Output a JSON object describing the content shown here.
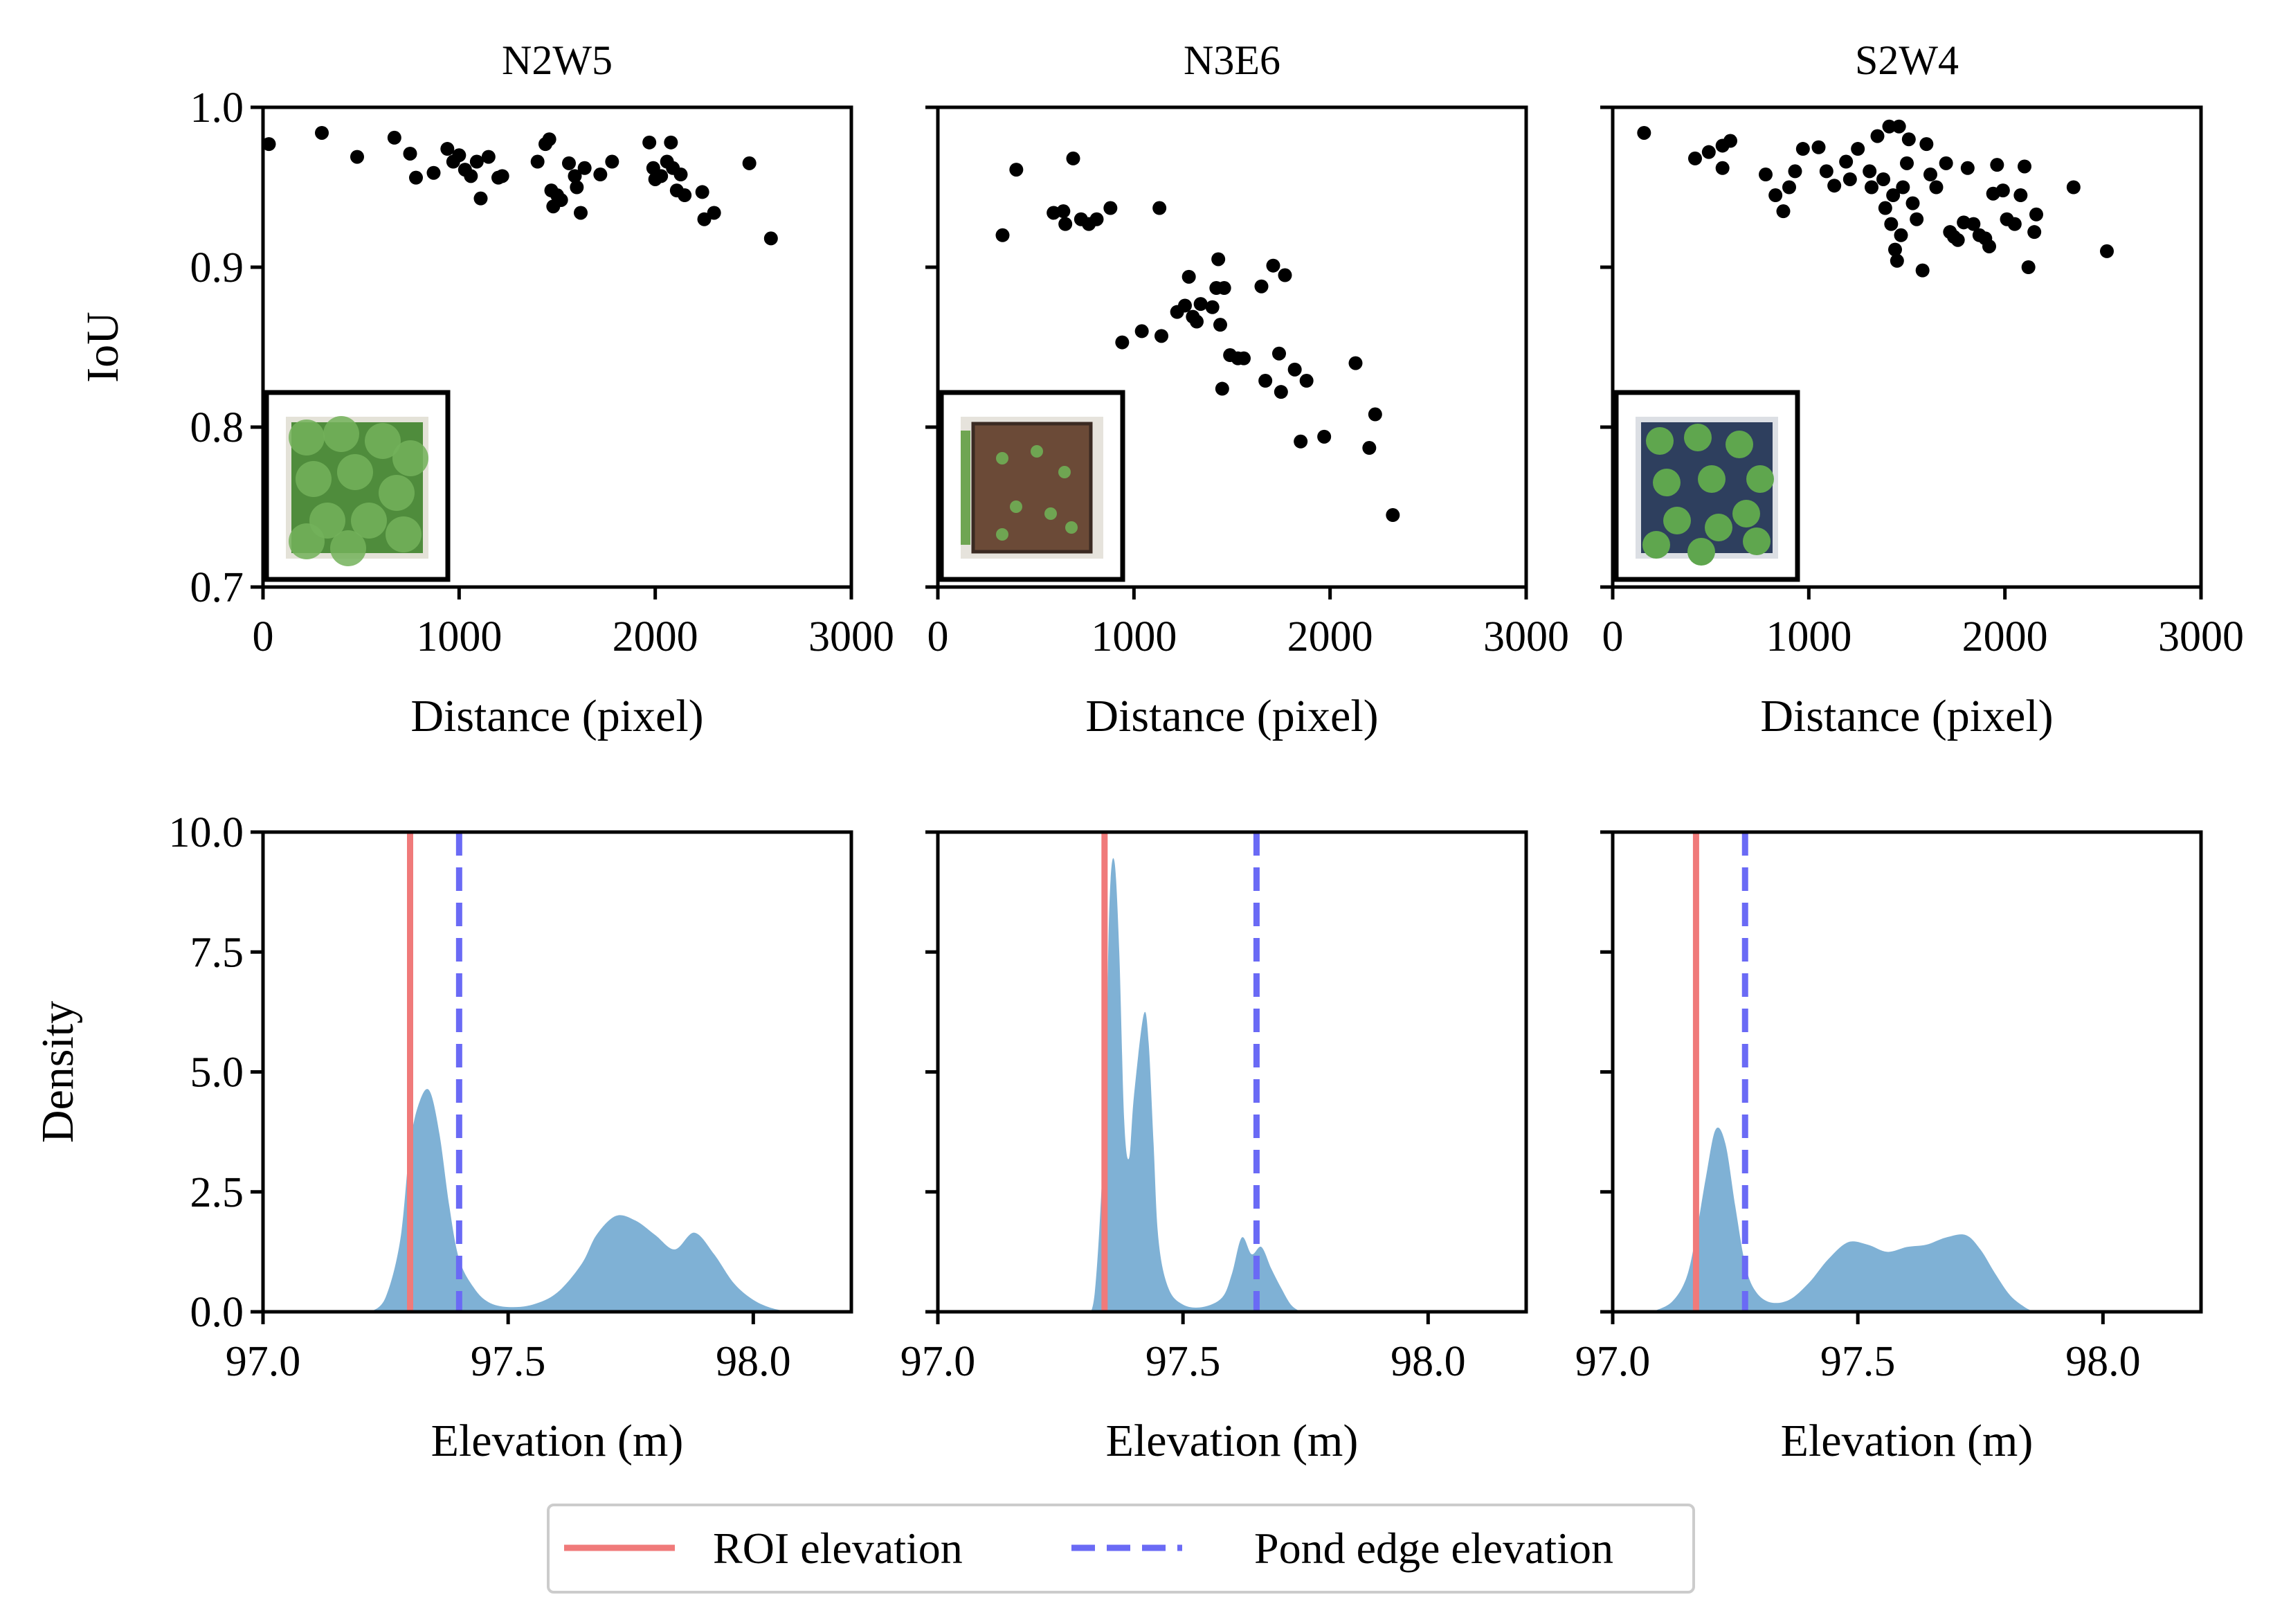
{
  "figure": {
    "legend": {
      "entries": [
        {
          "label": "ROI elevation",
          "style": "solid",
          "color": "#f07a7a"
        },
        {
          "label": "Pond edge elevation",
          "style": "dashed",
          "color": "#6a6af5"
        }
      ]
    }
  },
  "chart_data": [
    {
      "type": "scatter",
      "title": "N2W5",
      "xlabel": "Distance (pixel)",
      "ylabel": "IoU",
      "xlim": [
        0,
        3000
      ],
      "ylim": [
        0.7,
        1.0
      ],
      "xticks": [
        "0",
        "1000",
        "2000",
        "3000"
      ],
      "yticks": [
        "0.7",
        "0.8",
        "0.9",
        "1.0"
      ],
      "inset": "photo-green-dense",
      "points": [
        [
          30,
          0.977
        ],
        [
          300,
          0.984
        ],
        [
          480,
          0.969
        ],
        [
          670,
          0.981
        ],
        [
          750,
          0.971
        ],
        [
          780,
          0.956
        ],
        [
          870,
          0.959
        ],
        [
          940,
          0.974
        ],
        [
          970,
          0.966
        ],
        [
          1000,
          0.97
        ],
        [
          1030,
          0.961
        ],
        [
          1060,
          0.957
        ],
        [
          1090,
          0.966
        ],
        [
          1110,
          0.943
        ],
        [
          1150,
          0.969
        ],
        [
          1200,
          0.956
        ],
        [
          1220,
          0.957
        ],
        [
          1400,
          0.966
        ],
        [
          1440,
          0.977
        ],
        [
          1460,
          0.98
        ],
        [
          1470,
          0.948
        ],
        [
          1480,
          0.938
        ],
        [
          1500,
          0.945
        ],
        [
          1520,
          0.942
        ],
        [
          1560,
          0.965
        ],
        [
          1590,
          0.957
        ],
        [
          1600,
          0.95
        ],
        [
          1620,
          0.934
        ],
        [
          1640,
          0.962
        ],
        [
          1720,
          0.958
        ],
        [
          1780,
          0.966
        ],
        [
          1970,
          0.978
        ],
        [
          1990,
          0.962
        ],
        [
          2000,
          0.955
        ],
        [
          2030,
          0.957
        ],
        [
          2060,
          0.966
        ],
        [
          2080,
          0.978
        ],
        [
          2090,
          0.962
        ],
        [
          2110,
          0.948
        ],
        [
          2130,
          0.958
        ],
        [
          2150,
          0.945
        ],
        [
          2240,
          0.947
        ],
        [
          2250,
          0.93
        ],
        [
          2300,
          0.934
        ],
        [
          2480,
          0.965
        ],
        [
          2590,
          0.918
        ]
      ]
    },
    {
      "type": "scatter",
      "title": "N3E6",
      "xlabel": "Distance (pixel)",
      "ylabel": "",
      "xlim": [
        0,
        3000
      ],
      "ylim": [
        0.7,
        1.0
      ],
      "xticks": [
        "0",
        "1000",
        "2000",
        "3000"
      ],
      "inset": "photo-brown-soil",
      "points": [
        [
          330,
          0.92
        ],
        [
          400,
          0.961
        ],
        [
          590,
          0.934
        ],
        [
          640,
          0.935
        ],
        [
          650,
          0.927
        ],
        [
          690,
          0.968
        ],
        [
          730,
          0.93
        ],
        [
          770,
          0.927
        ],
        [
          810,
          0.93
        ],
        [
          880,
          0.937
        ],
        [
          940,
          0.853
        ],
        [
          1040,
          0.86
        ],
        [
          1130,
          0.937
        ],
        [
          1140,
          0.857
        ],
        [
          1220,
          0.872
        ],
        [
          1260,
          0.876
        ],
        [
          1280,
          0.894
        ],
        [
          1300,
          0.869
        ],
        [
          1320,
          0.866
        ],
        [
          1340,
          0.877
        ],
        [
          1400,
          0.875
        ],
        [
          1420,
          0.887
        ],
        [
          1430,
          0.905
        ],
        [
          1440,
          0.864
        ],
        [
          1450,
          0.824
        ],
        [
          1460,
          0.887
        ],
        [
          1490,
          0.845
        ],
        [
          1530,
          0.843
        ],
        [
          1560,
          0.843
        ],
        [
          1650,
          0.888
        ],
        [
          1670,
          0.829
        ],
        [
          1710,
          0.901
        ],
        [
          1740,
          0.846
        ],
        [
          1750,
          0.822
        ],
        [
          1770,
          0.895
        ],
        [
          1820,
          0.836
        ],
        [
          1850,
          0.791
        ],
        [
          1880,
          0.829
        ],
        [
          1970,
          0.794
        ],
        [
          2130,
          0.84
        ],
        [
          2200,
          0.787
        ],
        [
          2230,
          0.808
        ],
        [
          2320,
          0.745
        ]
      ]
    },
    {
      "type": "scatter",
      "title": "S2W4",
      "xlabel": "Distance (pixel)",
      "ylabel": "",
      "xlim": [
        0,
        3000
      ],
      "ylim": [
        0.7,
        1.0
      ],
      "xticks": [
        "0",
        "1000",
        "2000",
        "3000"
      ],
      "inset": "photo-green-sparse",
      "points": [
        [
          160,
          0.984
        ],
        [
          420,
          0.968
        ],
        [
          490,
          0.972
        ],
        [
          560,
          0.976
        ],
        [
          560,
          0.962
        ],
        [
          600,
          0.979
        ],
        [
          780,
          0.958
        ],
        [
          830,
          0.945
        ],
        [
          870,
          0.935
        ],
        [
          900,
          0.95
        ],
        [
          930,
          0.96
        ],
        [
          970,
          0.974
        ],
        [
          1050,
          0.975
        ],
        [
          1090,
          0.96
        ],
        [
          1130,
          0.951
        ],
        [
          1190,
          0.966
        ],
        [
          1210,
          0.955
        ],
        [
          1250,
          0.974
        ],
        [
          1310,
          0.96
        ],
        [
          1320,
          0.95
        ],
        [
          1350,
          0.982
        ],
        [
          1380,
          0.955
        ],
        [
          1390,
          0.937
        ],
        [
          1410,
          0.988
        ],
        [
          1420,
          0.927
        ],
        [
          1430,
          0.945
        ],
        [
          1440,
          0.911
        ],
        [
          1450,
          0.904
        ],
        [
          1460,
          0.988
        ],
        [
          1470,
          0.92
        ],
        [
          1480,
          0.95
        ],
        [
          1500,
          0.965
        ],
        [
          1510,
          0.98
        ],
        [
          1530,
          0.94
        ],
        [
          1550,
          0.93
        ],
        [
          1580,
          0.898
        ],
        [
          1600,
          0.977
        ],
        [
          1620,
          0.958
        ],
        [
          1650,
          0.95
        ],
        [
          1700,
          0.965
        ],
        [
          1720,
          0.922
        ],
        [
          1740,
          0.919
        ],
        [
          1760,
          0.917
        ],
        [
          1790,
          0.928
        ],
        [
          1810,
          0.962
        ],
        [
          1840,
          0.927
        ],
        [
          1870,
          0.92
        ],
        [
          1900,
          0.918
        ],
        [
          1920,
          0.913
        ],
        [
          1940,
          0.946
        ],
        [
          1960,
          0.964
        ],
        [
          1990,
          0.948
        ],
        [
          2010,
          0.93
        ],
        [
          2050,
          0.927
        ],
        [
          2080,
          0.945
        ],
        [
          2100,
          0.963
        ],
        [
          2120,
          0.9
        ],
        [
          2150,
          0.922
        ],
        [
          2160,
          0.933
        ],
        [
          2350,
          0.95
        ],
        [
          2520,
          0.91
        ]
      ]
    },
    {
      "type": "area",
      "subtype": "kde",
      "xlabel": "Elevation (m)",
      "ylabel": "Density",
      "xlim": [
        97.0,
        98.2
      ],
      "ylim": [
        0,
        10
      ],
      "xticks": [
        "97.0",
        "97.5",
        "98.0"
      ],
      "yticks": [
        "0.0",
        "2.5",
        "5.0",
        "7.5",
        "10.0"
      ],
      "roi_elevation": 97.3,
      "pond_edge_elevation": 97.4,
      "x": [
        97.22,
        97.25,
        97.28,
        97.3,
        97.32,
        97.34,
        97.36,
        97.38,
        97.4,
        97.43,
        97.46,
        97.5,
        97.55,
        97.6,
        97.65,
        97.68,
        97.72,
        97.76,
        97.8,
        97.84,
        97.88,
        97.92,
        97.96,
        98.0,
        98.04,
        98.08
      ],
      "density": [
        0.0,
        0.3,
        1.5,
        3.5,
        4.4,
        4.6,
        3.7,
        2.2,
        1.1,
        0.5,
        0.2,
        0.1,
        0.15,
        0.4,
        1.0,
        1.6,
        2.0,
        1.9,
        1.6,
        1.3,
        1.65,
        1.2,
        0.6,
        0.25,
        0.07,
        0.0
      ]
    },
    {
      "type": "area",
      "subtype": "kde",
      "xlabel": "Elevation (m)",
      "ylabel": "",
      "xlim": [
        97.0,
        98.2
      ],
      "ylim": [
        0,
        10
      ],
      "xticks": [
        "97.0",
        "97.5",
        "98.0"
      ],
      "roi_elevation": 97.34,
      "pond_edge_elevation": 97.65,
      "x": [
        97.3,
        97.32,
        97.34,
        97.35,
        97.36,
        97.37,
        97.38,
        97.39,
        97.4,
        97.42,
        97.43,
        97.44,
        97.45,
        97.47,
        97.5,
        97.54,
        97.58,
        97.6,
        97.62,
        97.64,
        97.66,
        97.68,
        97.7,
        97.72,
        97.74
      ],
      "density": [
        0.0,
        0.4,
        4.0,
        8.5,
        9.4,
        7.5,
        4.0,
        3.2,
        4.5,
        6.2,
        5.6,
        3.5,
        1.5,
        0.5,
        0.15,
        0.1,
        0.3,
        0.8,
        1.55,
        1.2,
        1.35,
        0.9,
        0.5,
        0.15,
        0.0
      ]
    },
    {
      "type": "area",
      "subtype": "kde",
      "xlabel": "Elevation (m)",
      "ylabel": "",
      "xlim": [
        97.0,
        98.2
      ],
      "ylim": [
        0,
        10
      ],
      "xticks": [
        "97.0",
        "97.5",
        "98.0"
      ],
      "roi_elevation": 97.17,
      "pond_edge_elevation": 97.27,
      "x": [
        97.08,
        97.12,
        97.15,
        97.17,
        97.19,
        97.21,
        97.23,
        97.25,
        97.27,
        97.29,
        97.32,
        97.36,
        97.4,
        97.44,
        97.48,
        97.52,
        97.56,
        97.6,
        97.64,
        97.68,
        97.72,
        97.75,
        97.78,
        97.81,
        97.84,
        97.86
      ],
      "density": [
        0.0,
        0.2,
        0.7,
        1.6,
        2.8,
        3.8,
        3.5,
        2.2,
        1.0,
        0.45,
        0.2,
        0.25,
        0.6,
        1.1,
        1.45,
        1.4,
        1.25,
        1.35,
        1.4,
        1.55,
        1.6,
        1.3,
        0.8,
        0.35,
        0.1,
        0.0
      ]
    }
  ]
}
